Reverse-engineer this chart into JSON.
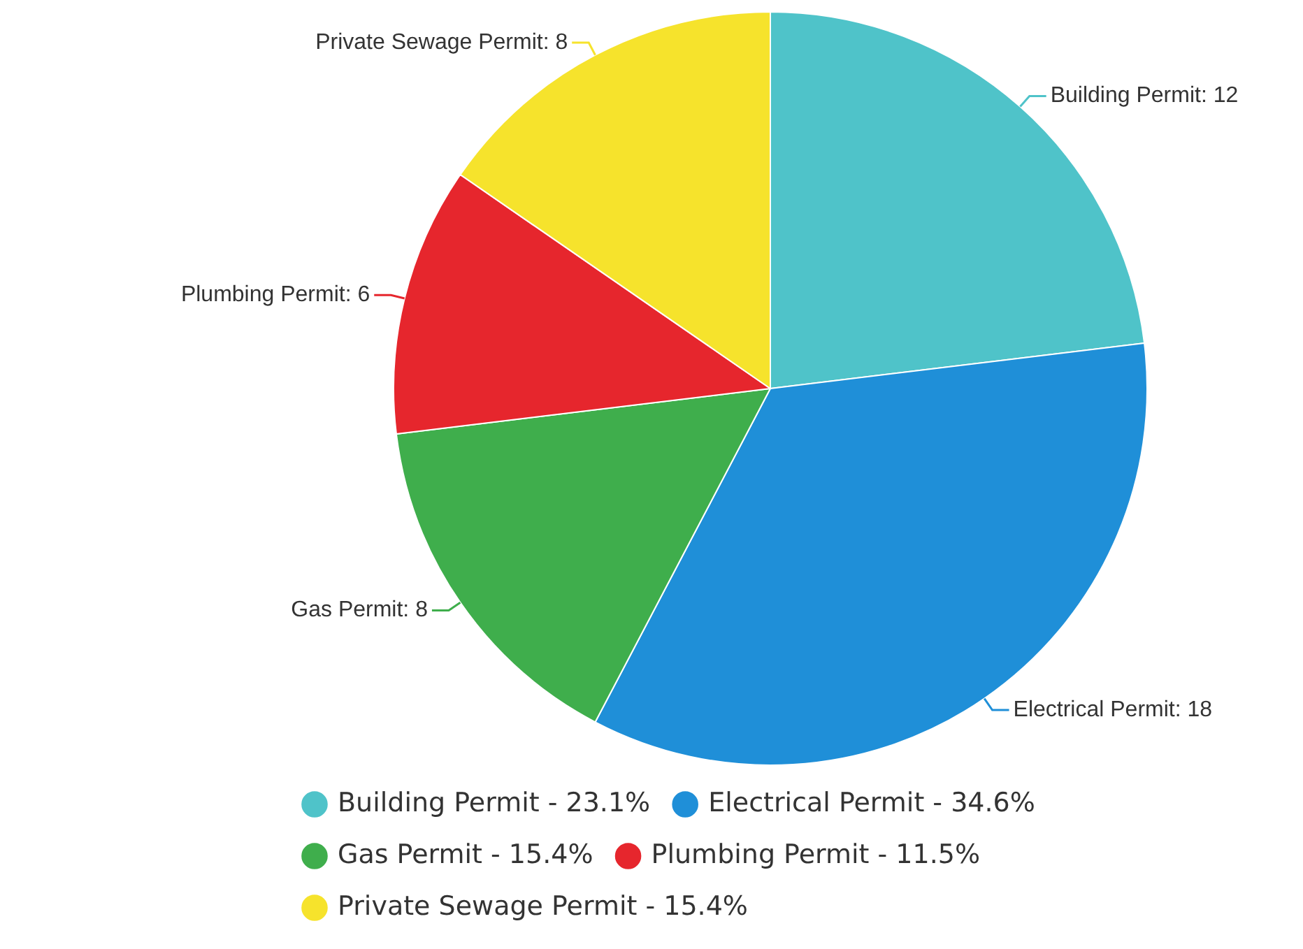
{
  "chart_data": {
    "type": "pie",
    "categories": [
      "Building Permit - 23.1%",
      "Electrical Permit - 34.6%",
      "Gas Permit - 15.4%",
      "Plumbing Permit - 11.5%",
      "Private Sewage Permit - 15.4%"
    ],
    "values": [
      12,
      18,
      8,
      6,
      8
    ],
    "value_labels": [
      "Building Permit: 12",
      "Electrical Permit: 18",
      "Gas Permit: 8",
      "Plumbing Permit: 6",
      "Private Sewage Permit: 8"
    ],
    "colors": [
      "#4fc3c9",
      "#1f8fd8",
      "#3fae4c",
      "#e6262d",
      "#f6e32c"
    ],
    "legend": "bottom"
  }
}
